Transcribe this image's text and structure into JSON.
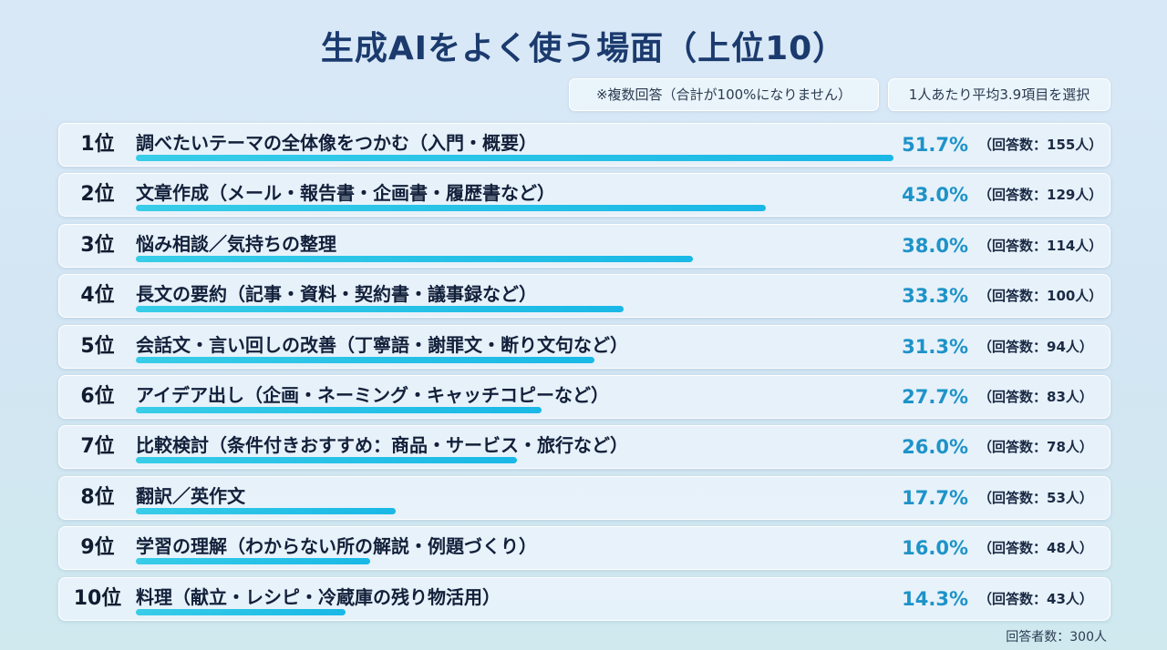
{
  "title": "生成AIをよく使う場面（上位10）",
  "notes": {
    "multiple": "※複数回答（合計が100%になりません）",
    "average": "1人あたり平均3.9項目を選択"
  },
  "footer": "回答者数：300人",
  "colors": {
    "bar": "#1ec0e8",
    "percent": "#1e93c8",
    "title": "#1b3a6e"
  },
  "chart_data": {
    "type": "bar",
    "orientation": "horizontal",
    "title": "生成AIをよく使う場面（上位10）",
    "xlim": [
      0,
      100
    ],
    "rows": [
      {
        "rank": "1位",
        "label": "調べたいテーマの全体像をつかむ（入門・概要）",
        "value": 51.7,
        "percent": "51.7%",
        "count": "（回答数：155人）"
      },
      {
        "rank": "2位",
        "label": "文章作成（メール・報告書・企画書・履歴書など）",
        "value": 43.0,
        "percent": "43.0%",
        "count": "（回答数：129人）"
      },
      {
        "rank": "3位",
        "label": "悩み相談／気持ちの整理",
        "value": 38.0,
        "percent": "38.0%",
        "count": "（回答数：114人）"
      },
      {
        "rank": "4位",
        "label": "長文の要約（記事・資料・契約書・議事録など）",
        "value": 33.3,
        "percent": "33.3%",
        "count": "（回答数：100人）"
      },
      {
        "rank": "5位",
        "label": "会話文・言い回しの改善（丁寧語・謝罪文・断り文句など）",
        "value": 31.3,
        "percent": "31.3%",
        "count": "（回答数：94人）"
      },
      {
        "rank": "6位",
        "label": "アイデア出し（企画・ネーミング・キャッチコピーなど）",
        "value": 27.7,
        "percent": "27.7%",
        "count": "（回答数：83人）"
      },
      {
        "rank": "7位",
        "label": "比較検討（条件付きおすすめ：商品・サービス・旅行など）",
        "value": 26.0,
        "percent": "26.0%",
        "count": "（回答数：78人）"
      },
      {
        "rank": "8位",
        "label": "翻訳／英作文",
        "value": 17.7,
        "percent": "17.7%",
        "count": "（回答数：53人）"
      },
      {
        "rank": "9位",
        "label": "学習の理解（わからない所の解説・例題づくり）",
        "value": 16.0,
        "percent": "16.0%",
        "count": "（回答数：48人）"
      },
      {
        "rank": "10位",
        "label": "料理（献立・レシピ・冷蔵庫の残り物活用）",
        "value": 14.3,
        "percent": "14.3%",
        "count": "（回答数：43人）"
      }
    ]
  }
}
